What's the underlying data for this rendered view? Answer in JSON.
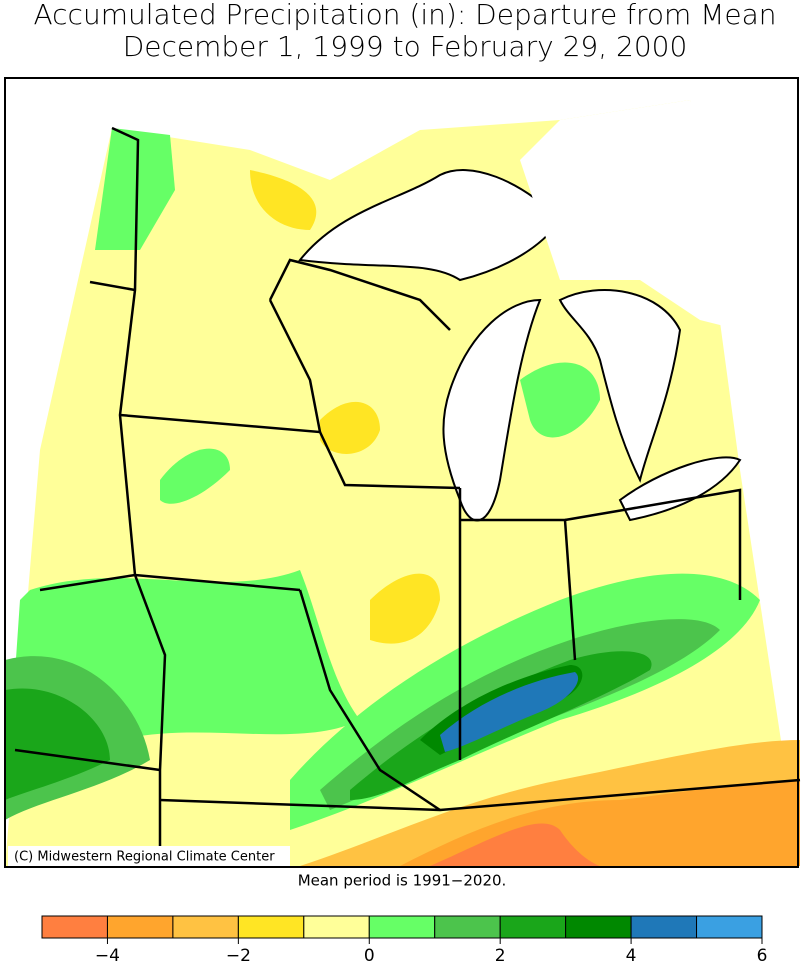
{
  "title_lines": [
    "Accumulated Precipitation (in): Departure from Mean",
    "December 1, 1999 to February 29, 2000"
  ],
  "credit": "(C) Midwestern Regional Climate Center",
  "note": "Mean period is 1991−2020.",
  "colorbar": {
    "bins": [
      -5,
      -4,
      -3,
      -2,
      -1,
      0,
      1,
      2,
      3,
      4,
      5,
      6
    ],
    "colors": [
      "#ff7f40",
      "#ffa52d",
      "#ffc242",
      "#ffe524",
      "#ffff99",
      "#66ff66",
      "#4cc44c",
      "#1aa61a",
      "#008800",
      "#1f78b8",
      "#3aa0e2"
    ],
    "ticks": [
      {
        "value": -4,
        "label": "−4"
      },
      {
        "value": -2,
        "label": "−2"
      },
      0,
      2,
      4,
      6
    ]
  }
}
